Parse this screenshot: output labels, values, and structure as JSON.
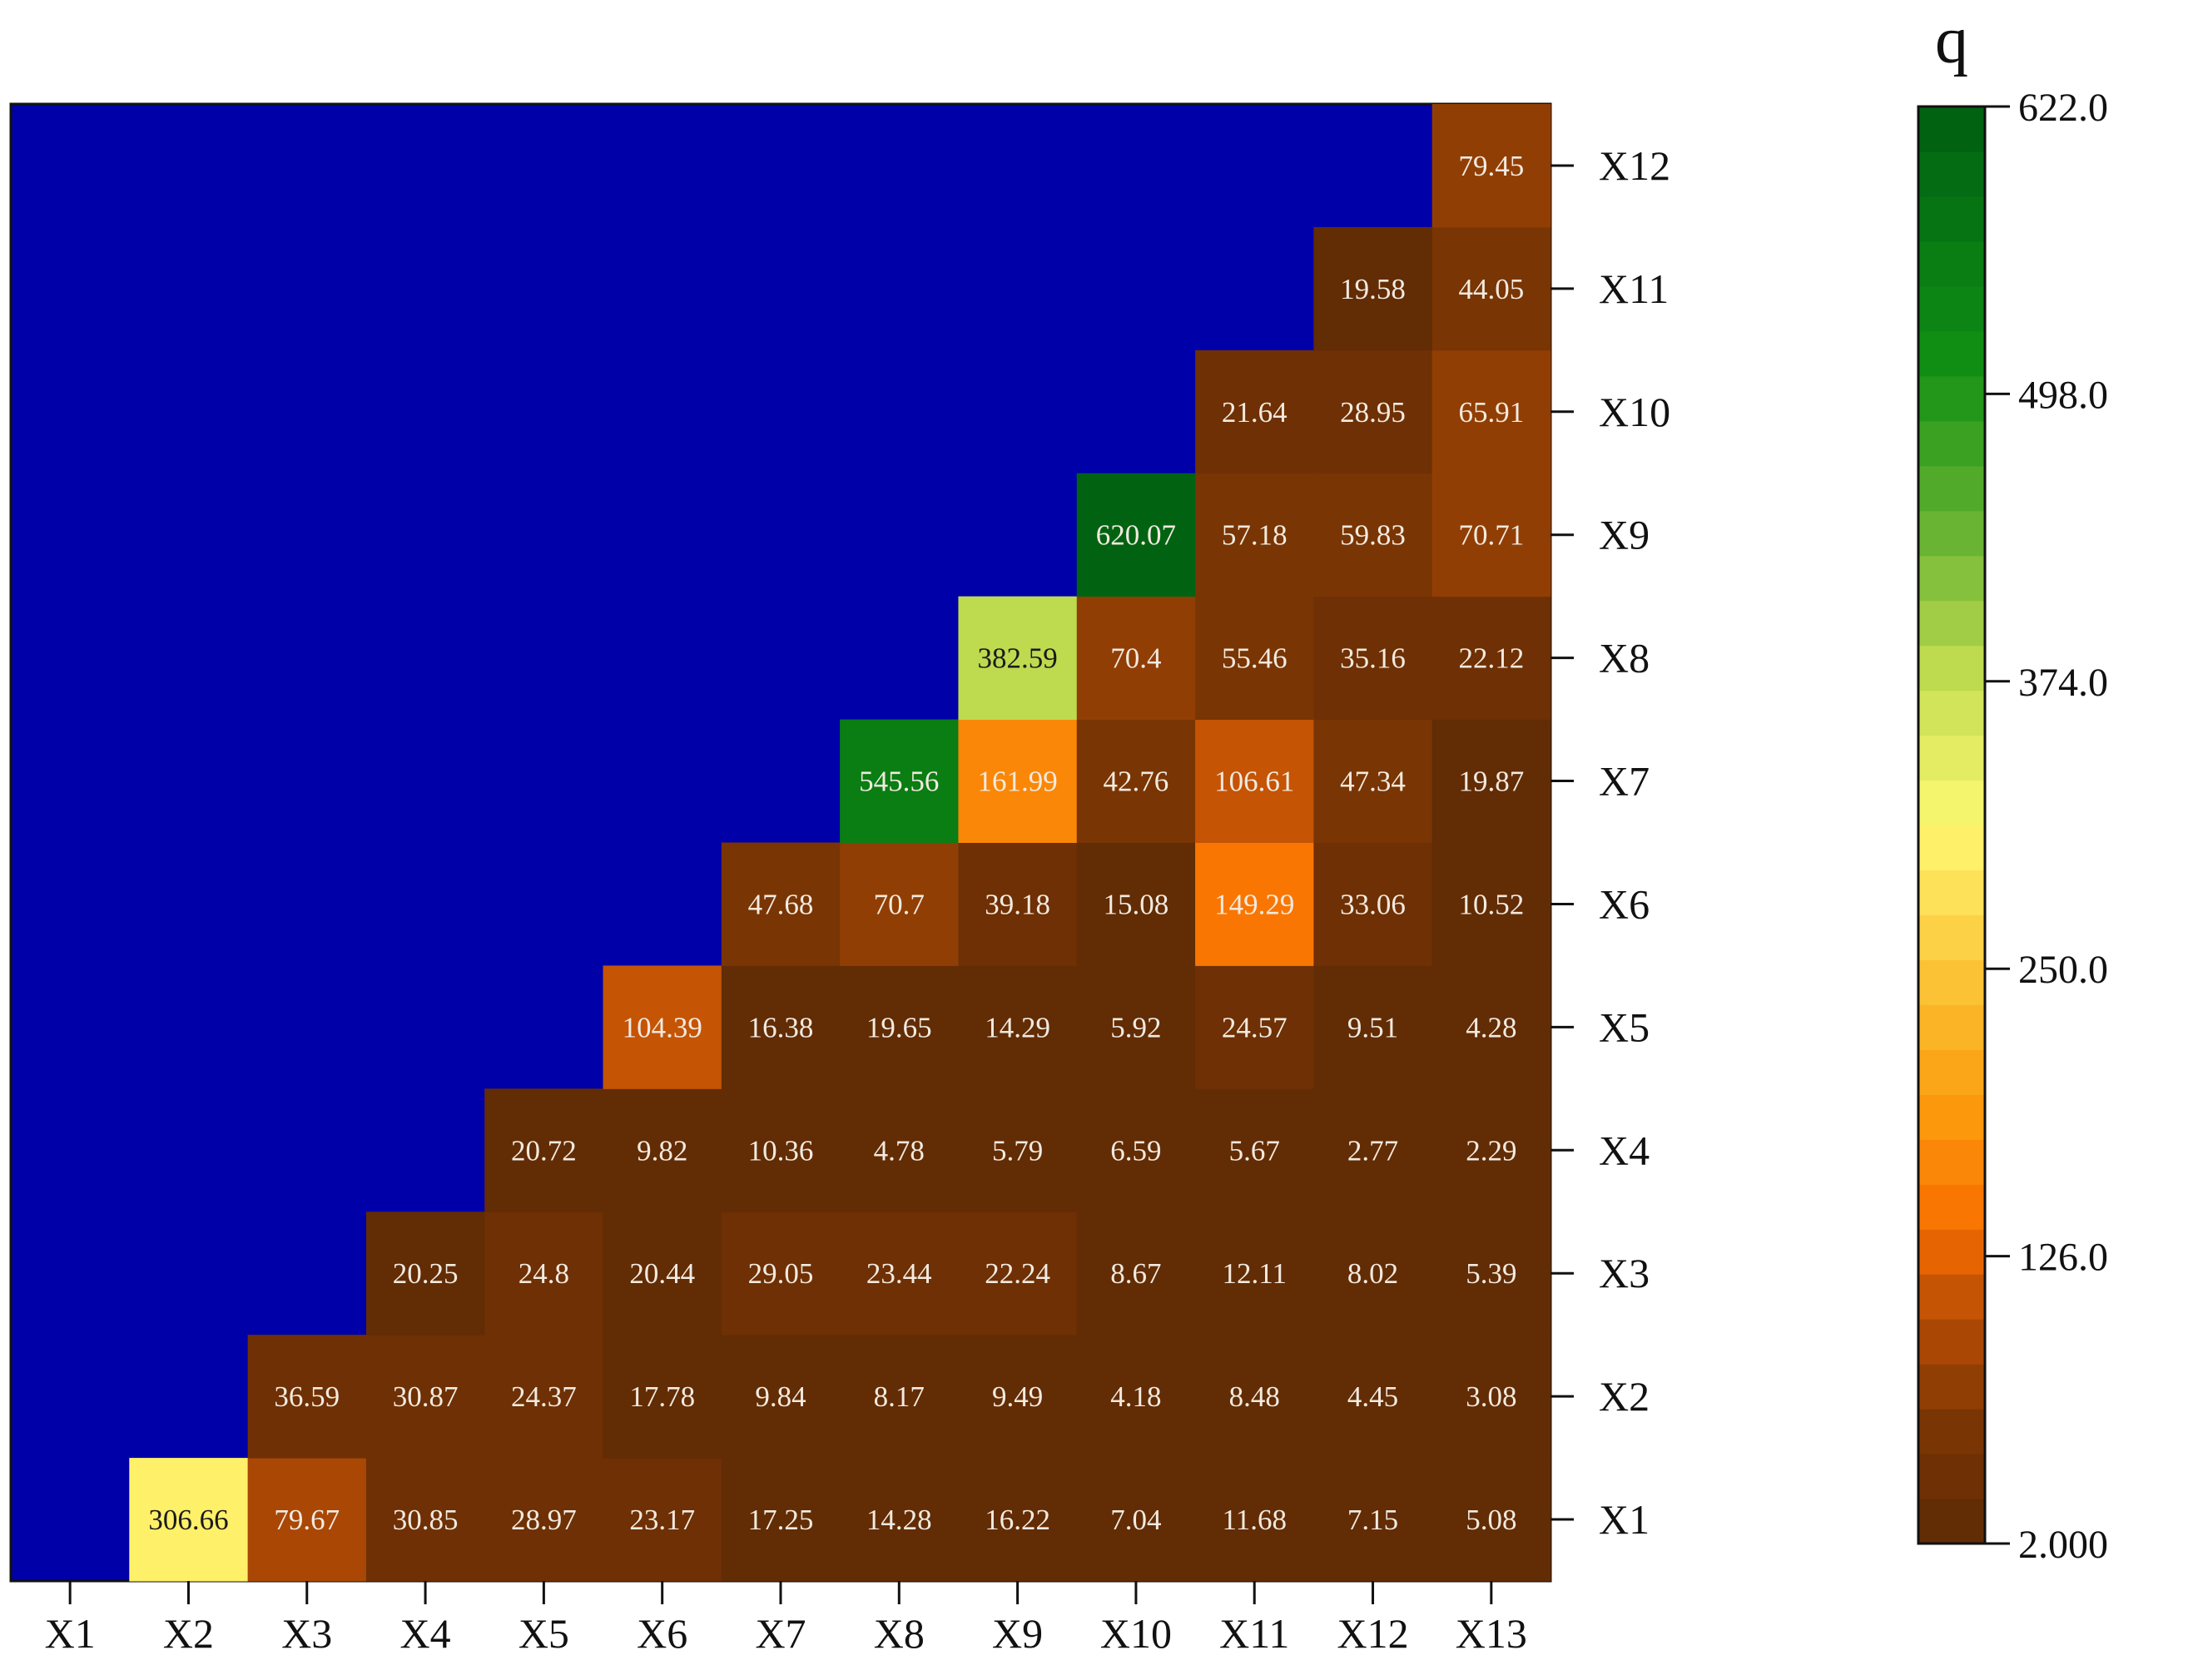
{
  "chart_data": {
    "type": "heatmap",
    "x_categories": [
      "X1",
      "X2",
      "X3",
      "X4",
      "X5",
      "X6",
      "X7",
      "X8",
      "X9",
      "X10",
      "X11",
      "X12",
      "X13"
    ],
    "y_categories": [
      "X1",
      "X2",
      "X3",
      "X4",
      "X5",
      "X6",
      "X7",
      "X8",
      "X9",
      "X10",
      "X11",
      "X12"
    ],
    "cells": [
      {
        "x": "X2",
        "y": "X1",
        "value": "306.66"
      },
      {
        "x": "X3",
        "y": "X1",
        "value": "79.67"
      },
      {
        "x": "X4",
        "y": "X1",
        "value": "30.85"
      },
      {
        "x": "X5",
        "y": "X1",
        "value": "28.97"
      },
      {
        "x": "X6",
        "y": "X1",
        "value": "23.17"
      },
      {
        "x": "X7",
        "y": "X1",
        "value": "17.25"
      },
      {
        "x": "X8",
        "y": "X1",
        "value": "14.28"
      },
      {
        "x": "X9",
        "y": "X1",
        "value": "16.22"
      },
      {
        "x": "X10",
        "y": "X1",
        "value": "7.04"
      },
      {
        "x": "X11",
        "y": "X1",
        "value": "11.68"
      },
      {
        "x": "X12",
        "y": "X1",
        "value": "7.15"
      },
      {
        "x": "X13",
        "y": "X1",
        "value": "5.08"
      },
      {
        "x": "X3",
        "y": "X2",
        "value": "36.59"
      },
      {
        "x": "X4",
        "y": "X2",
        "value": "30.87"
      },
      {
        "x": "X5",
        "y": "X2",
        "value": "24.37"
      },
      {
        "x": "X6",
        "y": "X2",
        "value": "17.78"
      },
      {
        "x": "X7",
        "y": "X2",
        "value": "9.84"
      },
      {
        "x": "X8",
        "y": "X2",
        "value": "8.17"
      },
      {
        "x": "X9",
        "y": "X2",
        "value": "9.49"
      },
      {
        "x": "X10",
        "y": "X2",
        "value": "4.18"
      },
      {
        "x": "X11",
        "y": "X2",
        "value": "8.48"
      },
      {
        "x": "X12",
        "y": "X2",
        "value": "4.45"
      },
      {
        "x": "X13",
        "y": "X2",
        "value": "3.08"
      },
      {
        "x": "X4",
        "y": "X3",
        "value": "20.25"
      },
      {
        "x": "X5",
        "y": "X3",
        "value": "24.8"
      },
      {
        "x": "X6",
        "y": "X3",
        "value": "20.44"
      },
      {
        "x": "X7",
        "y": "X3",
        "value": "29.05"
      },
      {
        "x": "X8",
        "y": "X3",
        "value": "23.44"
      },
      {
        "x": "X9",
        "y": "X3",
        "value": "22.24"
      },
      {
        "x": "X10",
        "y": "X3",
        "value": "8.67"
      },
      {
        "x": "X11",
        "y": "X3",
        "value": "12.11"
      },
      {
        "x": "X12",
        "y": "X3",
        "value": "8.02"
      },
      {
        "x": "X13",
        "y": "X3",
        "value": "5.39"
      },
      {
        "x": "X5",
        "y": "X4",
        "value": "20.72"
      },
      {
        "x": "X6",
        "y": "X4",
        "value": "9.82"
      },
      {
        "x": "X7",
        "y": "X4",
        "value": "10.36"
      },
      {
        "x": "X8",
        "y": "X4",
        "value": "4.78"
      },
      {
        "x": "X9",
        "y": "X4",
        "value": "5.79"
      },
      {
        "x": "X10",
        "y": "X4",
        "value": "6.59"
      },
      {
        "x": "X11",
        "y": "X4",
        "value": "5.67"
      },
      {
        "x": "X12",
        "y": "X4",
        "value": "2.77"
      },
      {
        "x": "X13",
        "y": "X4",
        "value": "2.29"
      },
      {
        "x": "X6",
        "y": "X5",
        "value": "104.39"
      },
      {
        "x": "X7",
        "y": "X5",
        "value": "16.38"
      },
      {
        "x": "X8",
        "y": "X5",
        "value": "19.65"
      },
      {
        "x": "X9",
        "y": "X5",
        "value": "14.29"
      },
      {
        "x": "X10",
        "y": "X5",
        "value": "5.92"
      },
      {
        "x": "X11",
        "y": "X5",
        "value": "24.57"
      },
      {
        "x": "X12",
        "y": "X5",
        "value": "9.51"
      },
      {
        "x": "X13",
        "y": "X5",
        "value": "4.28"
      },
      {
        "x": "X7",
        "y": "X6",
        "value": "47.68"
      },
      {
        "x": "X8",
        "y": "X6",
        "value": "70.7"
      },
      {
        "x": "X9",
        "y": "X6",
        "value": "39.18"
      },
      {
        "x": "X10",
        "y": "X6",
        "value": "15.08"
      },
      {
        "x": "X11",
        "y": "X6",
        "value": "149.29"
      },
      {
        "x": "X12",
        "y": "X6",
        "value": "33.06"
      },
      {
        "x": "X13",
        "y": "X6",
        "value": "10.52"
      },
      {
        "x": "X8",
        "y": "X7",
        "value": "545.56"
      },
      {
        "x": "X9",
        "y": "X7",
        "value": "161.99"
      },
      {
        "x": "X10",
        "y": "X7",
        "value": "42.76"
      },
      {
        "x": "X11",
        "y": "X7",
        "value": "106.61"
      },
      {
        "x": "X12",
        "y": "X7",
        "value": "47.34"
      },
      {
        "x": "X13",
        "y": "X7",
        "value": "19.87"
      },
      {
        "x": "X9",
        "y": "X8",
        "value": "382.59"
      },
      {
        "x": "X10",
        "y": "X8",
        "value": "70.4"
      },
      {
        "x": "X11",
        "y": "X8",
        "value": "55.46"
      },
      {
        "x": "X12",
        "y": "X8",
        "value": "35.16"
      },
      {
        "x": "X13",
        "y": "X8",
        "value": "22.12"
      },
      {
        "x": "X10",
        "y": "X9",
        "value": "620.07"
      },
      {
        "x": "X11",
        "y": "X9",
        "value": "57.18"
      },
      {
        "x": "X12",
        "y": "X9",
        "value": "59.83"
      },
      {
        "x": "X13",
        "y": "X9",
        "value": "70.71"
      },
      {
        "x": "X11",
        "y": "X10",
        "value": "21.64"
      },
      {
        "x": "X12",
        "y": "X10",
        "value": "28.95"
      },
      {
        "x": "X13",
        "y": "X10",
        "value": "65.91"
      },
      {
        "x": "X12",
        "y": "X11",
        "value": "19.58"
      },
      {
        "x": "X13",
        "y": "X11",
        "value": "44.05"
      },
      {
        "x": "X13",
        "y": "X12",
        "value": "79.45"
      }
    ],
    "colorbar": {
      "title": "q",
      "min": 2.0,
      "max": 622.0,
      "ticks": [
        "622.0",
        "498.0",
        "374.0",
        "250.0",
        "126.0",
        "2.000"
      ],
      "levels": 32
    },
    "colors": {
      "empty": "#0000a8",
      "scale": [
        [
          0.0,
          "#5c2a05"
        ],
        [
          0.08,
          "#7a3503"
        ],
        [
          0.16,
          "#b94d06"
        ],
        [
          0.22,
          "#f86e00"
        ],
        [
          0.3,
          "#fb9a0c"
        ],
        [
          0.4,
          "#fcc63a"
        ],
        [
          0.5,
          "#fef872"
        ],
        [
          0.6,
          "#c6de52"
        ],
        [
          0.7,
          "#6cb534"
        ],
        [
          0.82,
          "#119014"
        ],
        [
          1.0,
          "#005f12"
        ]
      ]
    }
  }
}
